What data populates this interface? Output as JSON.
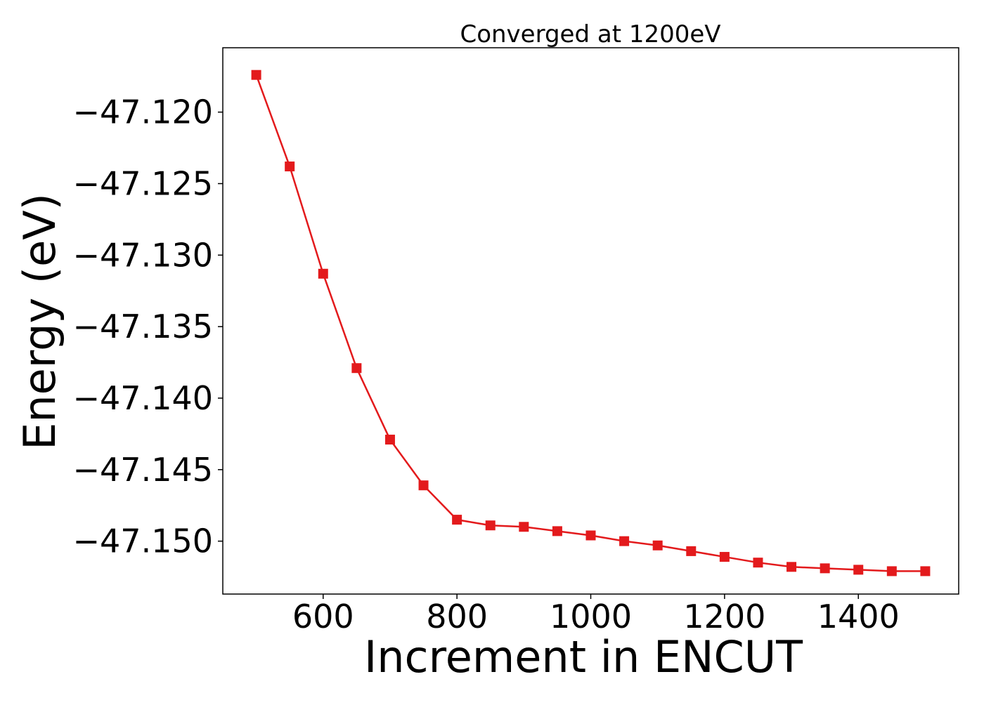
{
  "chart_data": {
    "type": "line",
    "title": "Converged at 1200eV",
    "xlabel": "Increment in ENCUT",
    "ylabel": "Energy (eV)",
    "xlim": [
      450,
      1550
    ],
    "ylim": [
      -47.1537,
      -47.1155
    ],
    "xticks": [
      600,
      800,
      1000,
      1200,
      1400
    ],
    "xtick_labels": [
      "600",
      "800",
      "1000",
      "1200",
      "1400"
    ],
    "yticks": [
      -47.12,
      -47.125,
      -47.13,
      -47.135,
      -47.14,
      -47.145,
      -47.15
    ],
    "ytick_labels": [
      "−47.120",
      "−47.125",
      "−47.130",
      "−47.135",
      "−47.140",
      "−47.145",
      "−47.150"
    ],
    "grid": false,
    "legend": "none",
    "series": [
      {
        "color": "#e31a1c",
        "marker": "square",
        "x": [
          500,
          550,
          600,
          650,
          700,
          750,
          800,
          850,
          900,
          950,
          1000,
          1050,
          1100,
          1150,
          1200,
          1250,
          1300,
          1350,
          1400,
          1450,
          1500
        ],
        "y": [
          -47.1174,
          -47.1238,
          -47.1313,
          -47.1379,
          -47.1429,
          -47.1461,
          -47.1485,
          -47.1489,
          -47.149,
          -47.1493,
          -47.1496,
          -47.15,
          -47.1503,
          -47.1507,
          -47.1511,
          -47.1515,
          -47.1518,
          -47.1519,
          -47.152,
          -47.1521,
          -47.1521
        ]
      }
    ]
  }
}
